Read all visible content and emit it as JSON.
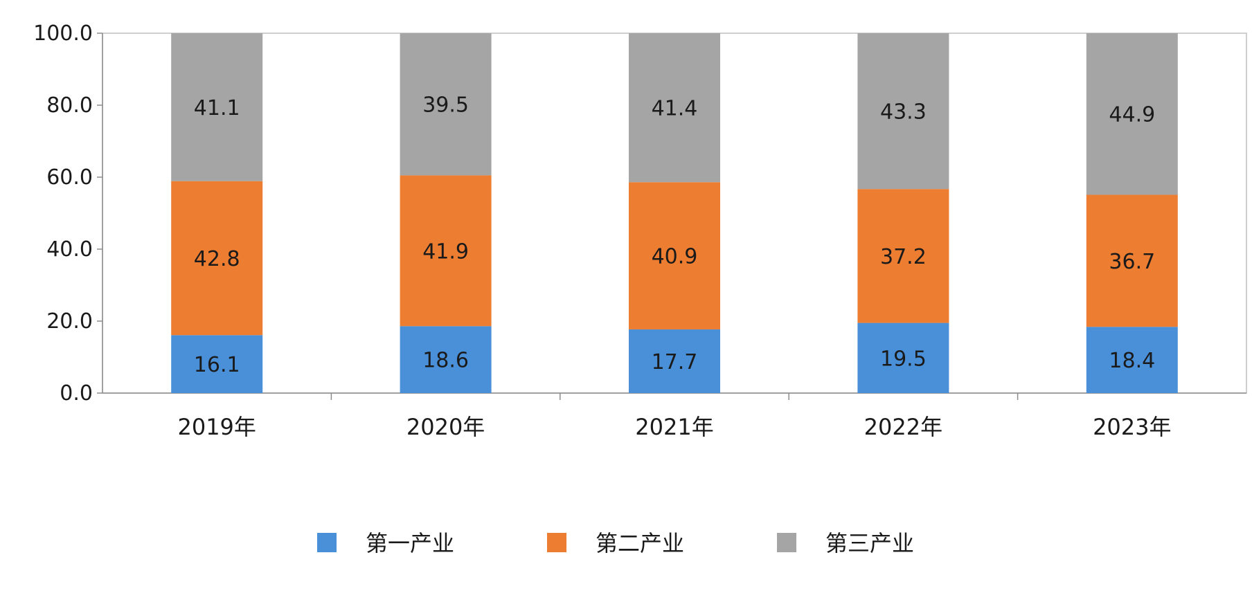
{
  "chart_data": {
    "type": "bar",
    "stacked": true,
    "categories": [
      "2019年",
      "2020年",
      "2021年",
      "2022年",
      "2023年"
    ],
    "series": [
      {
        "name": "第一产业",
        "color": "#4a90d9",
        "values": [
          16.1,
          18.6,
          17.7,
          19.5,
          18.4
        ]
      },
      {
        "name": "第二产业",
        "color": "#ed7d31",
        "values": [
          42.8,
          41.9,
          40.9,
          37.2,
          36.7
        ]
      },
      {
        "name": "第三产业",
        "color": "#a5a5a5",
        "values": [
          41.1,
          39.5,
          41.4,
          43.3,
          44.9
        ]
      }
    ],
    "yticks": [
      "0.0",
      "20.0",
      "40.0",
      "60.0",
      "80.0",
      "100.0"
    ],
    "ylim": [
      0,
      100
    ],
    "grid": false,
    "legend_position": "bottom",
    "title": "",
    "xlabel": "",
    "ylabel": ""
  }
}
